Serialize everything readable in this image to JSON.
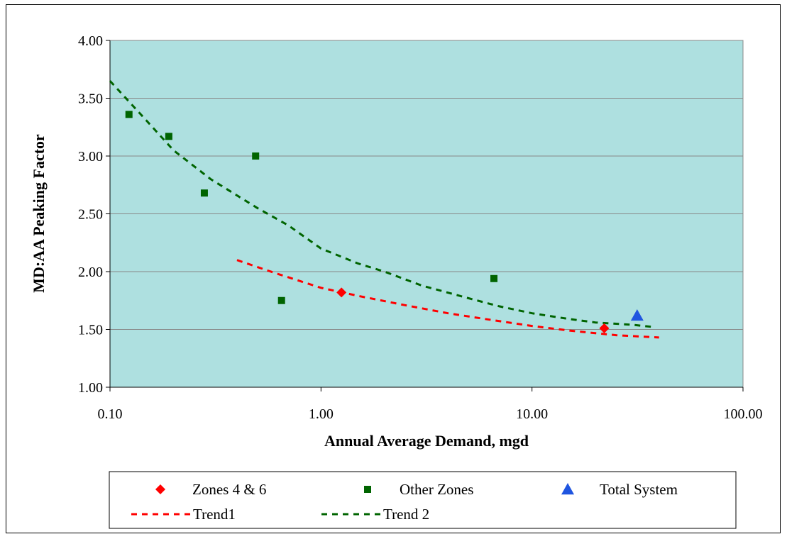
{
  "chart_data": {
    "type": "scatter",
    "title": "",
    "xlabel": "Annual Average Demand, mgd",
    "ylabel": "MD:AA Peaking Factor",
    "x_scale": "log",
    "xlim": [
      0.1,
      100
    ],
    "ylim": [
      1.0,
      4.0
    ],
    "x_ticks": [
      0.1,
      1,
      10,
      100
    ],
    "x_tick_labels": [
      "0.10",
      "1.00",
      "10.00",
      "100.00"
    ],
    "y_ticks": [
      1.0,
      1.5,
      2.0,
      2.5,
      3.0,
      3.5,
      4.0
    ],
    "y_tick_labels": [
      "1.00",
      "1.50",
      "2.00",
      "2.50",
      "3.00",
      "3.50",
      "4.00"
    ],
    "grid": "horizontal",
    "plot_background": "#aee0e0",
    "legend_position": "bottom",
    "series": [
      {
        "name": "Zones 4 & 6",
        "kind": "points",
        "marker": "diamond",
        "color": "#ff0000",
        "points": [
          [
            1.25,
            1.82
          ],
          [
            22.0,
            1.51
          ]
        ]
      },
      {
        "name": "Other Zones",
        "kind": "points",
        "marker": "square",
        "color": "#006400",
        "points": [
          [
            0.123,
            3.36
          ],
          [
            0.19,
            3.17
          ],
          [
            0.28,
            2.68
          ],
          [
            0.49,
            3.0
          ],
          [
            0.65,
            1.75
          ],
          [
            6.6,
            1.94
          ]
        ]
      },
      {
        "name": "Total System",
        "kind": "points",
        "marker": "triangle",
        "color": "#1f55e0",
        "points": [
          [
            31.5,
            1.62
          ]
        ]
      },
      {
        "name": "Trend1",
        "kind": "dashed-line",
        "color": "#ff0000",
        "points": [
          [
            0.4,
            2.1
          ],
          [
            0.6,
            1.99
          ],
          [
            1.0,
            1.86
          ],
          [
            1.5,
            1.79
          ],
          [
            2.5,
            1.71
          ],
          [
            4.0,
            1.64
          ],
          [
            6.0,
            1.59
          ],
          [
            10.0,
            1.53
          ],
          [
            15.0,
            1.49
          ],
          [
            25.0,
            1.45
          ],
          [
            40.0,
            1.43
          ]
        ]
      },
      {
        "name": "Trend 2",
        "kind": "dashed-line",
        "color": "#006400",
        "points": [
          [
            0.1,
            3.65
          ],
          [
            0.15,
            3.3
          ],
          [
            0.2,
            3.05
          ],
          [
            0.3,
            2.8
          ],
          [
            0.5,
            2.55
          ],
          [
            0.7,
            2.4
          ],
          [
            1.0,
            2.2
          ],
          [
            1.5,
            2.07
          ],
          [
            2.0,
            2.0
          ],
          [
            3.0,
            1.88
          ],
          [
            5.0,
            1.77
          ],
          [
            7.0,
            1.7
          ],
          [
            10.0,
            1.64
          ],
          [
            15.0,
            1.59
          ],
          [
            20.0,
            1.56
          ],
          [
            30.0,
            1.54
          ],
          [
            38.0,
            1.52
          ]
        ]
      }
    ]
  }
}
